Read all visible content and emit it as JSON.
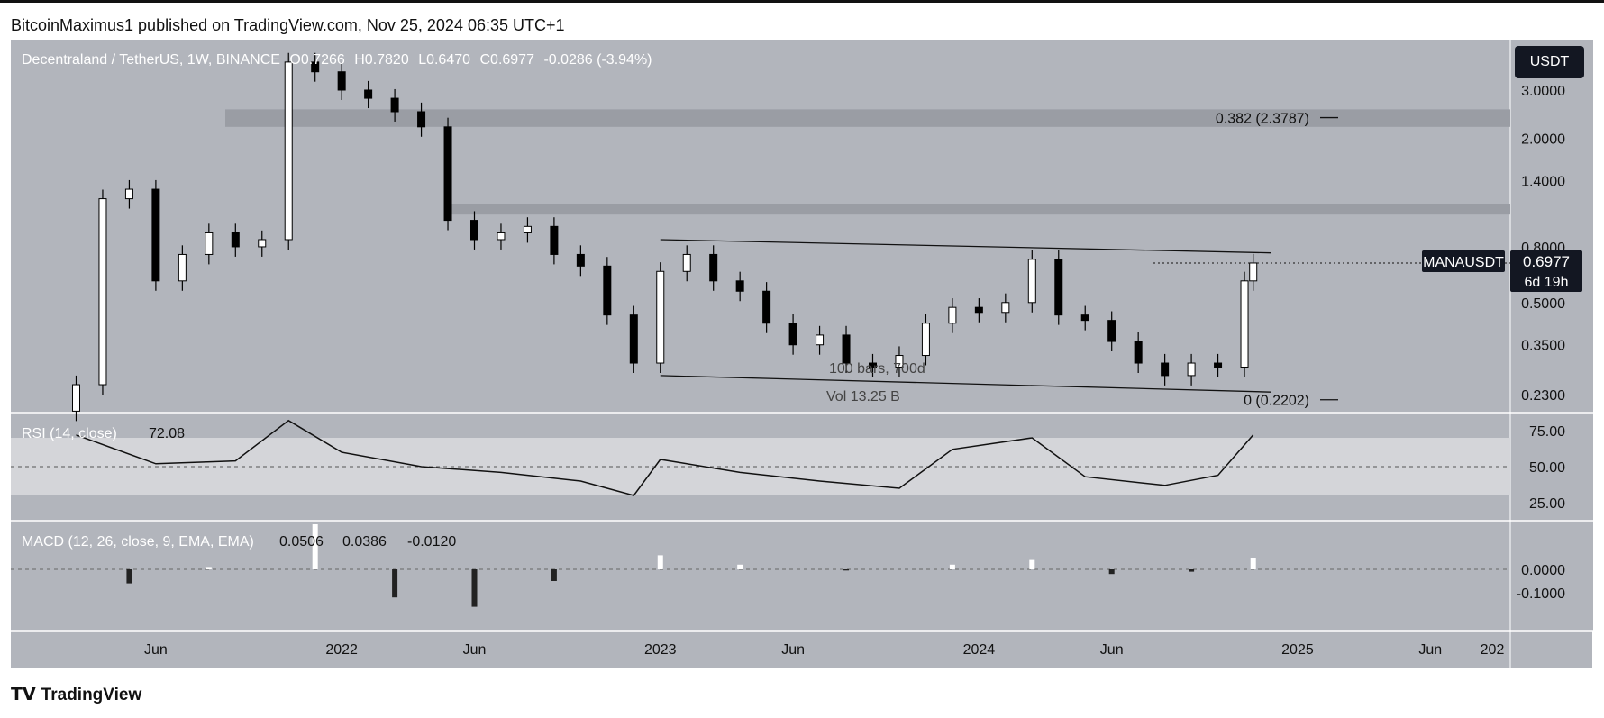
{
  "header": {
    "publisher": "BitcoinMaximus1 published on TradingView.com, Nov 25, 2024 06:35 UTC+1"
  },
  "symbol_bar": {
    "symbol": "Decentraland / TetherUS, 1W, BINANCE",
    "open": "O0.7266",
    "high": "H0.7820",
    "low": "L0.6470",
    "close": "C0.6977",
    "change": "-0.0286 (-3.94%)"
  },
  "currency_badge": "USDT",
  "price_scale": [
    "3.0000",
    "2.0000",
    "1.4000",
    "0.8000",
    "0.5000",
    "0.3500",
    "0.2300"
  ],
  "price_label": {
    "ticker": "MANAUSDT",
    "price": "0.6977",
    "countdown": "6d 19h"
  },
  "fib_labels": [
    "0.382 (2.3787)",
    "0 (0.2202)"
  ],
  "measure_text": [
    "100 bars, 700d",
    "Vol 13.25 B"
  ],
  "rsi": {
    "label": "RSI (14, close)",
    "value": "72.08",
    "scale": [
      "75.00",
      "50.00",
      "25.00"
    ]
  },
  "macd": {
    "label": "MACD (12, 26, close, 9, EMA, EMA)",
    "values": [
      "0.0506",
      "0.0386",
      "-0.0120"
    ],
    "scale": [
      "0.0000",
      "-0.1000"
    ]
  },
  "time_axis": [
    "Jun",
    "2022",
    "Jun",
    "2023",
    "Jun",
    "2024",
    "Jun",
    "2025",
    "Jun",
    "202"
  ],
  "footer": {
    "brand": "TradingView"
  },
  "colors": {
    "panel_bg": "#b2b5bc",
    "candle_up": "#ffffff",
    "candle_down": "#000000",
    "rsi_band": "#d4d5d9",
    "macd_signal": "#ffffff"
  },
  "chart_data": {
    "type": "candlestick",
    "pair": "MANA/USDT",
    "interval": "1W",
    "price_axis": {
      "scale": "log",
      "ticks": [
        3.0,
        2.0,
        1.4,
        0.8,
        0.5,
        0.35,
        0.23
      ]
    },
    "time_range": [
      "2021-03",
      "2025-12"
    ],
    "descending_channel": {
      "upper": [
        [
          "2023-01",
          0.85
        ],
        [
          "2024-12",
          0.76
        ]
      ],
      "lower": [
        [
          "2023-01",
          0.27
        ],
        [
          "2024-12",
          0.235
        ]
      ]
    },
    "fib_levels": [
      {
        "ratio": 0.382,
        "price": 2.3787
      },
      {
        "ratio": 0,
        "price": 0.2202
      }
    ],
    "weekly_close_approx": [
      [
        "2021-03",
        0.25
      ],
      [
        "2021-04",
        1.2
      ],
      [
        "2021-05",
        1.3
      ],
      [
        "2021-06",
        0.6
      ],
      [
        "2021-07",
        0.75
      ],
      [
        "2021-08",
        0.9
      ],
      [
        "2021-09",
        0.8
      ],
      [
        "2021-10",
        0.85
      ],
      [
        "2021-11",
        3.8
      ],
      [
        "2021-12",
        3.5
      ],
      [
        "2022-01",
        3.0
      ],
      [
        "2022-02",
        2.8
      ],
      [
        "2022-03",
        2.5
      ],
      [
        "2022-04",
        2.2
      ],
      [
        "2022-05",
        1.0
      ],
      [
        "2022-06",
        0.85
      ],
      [
        "2022-07",
        0.9
      ],
      [
        "2022-08",
        0.95
      ],
      [
        "2022-09",
        0.75
      ],
      [
        "2022-10",
        0.68
      ],
      [
        "2022-11",
        0.45
      ],
      [
        "2022-12",
        0.3
      ],
      [
        "2023-01",
        0.65
      ],
      [
        "2023-02",
        0.75
      ],
      [
        "2023-03",
        0.6
      ],
      [
        "2023-04",
        0.55
      ],
      [
        "2023-05",
        0.42
      ],
      [
        "2023-06",
        0.35
      ],
      [
        "2023-07",
        0.38
      ],
      [
        "2023-08",
        0.3
      ],
      [
        "2023-09",
        0.29
      ],
      [
        "2023-10",
        0.32
      ],
      [
        "2023-11",
        0.42
      ],
      [
        "2023-12",
        0.48
      ],
      [
        "2024-01",
        0.46
      ],
      [
        "2024-02",
        0.5
      ],
      [
        "2024-03",
        0.72
      ],
      [
        "2024-04",
        0.45
      ],
      [
        "2024-05",
        0.43
      ],
      [
        "2024-06",
        0.36
      ],
      [
        "2024-07",
        0.3
      ],
      [
        "2024-08",
        0.27
      ],
      [
        "2024-09",
        0.3
      ],
      [
        "2024-10",
        0.29
      ],
      [
        "2024-11",
        0.6
      ],
      [
        "2024-11-25",
        0.6977
      ]
    ],
    "rsi_series_approx": [
      [
        "2021-03",
        72
      ],
      [
        "2021-06",
        52
      ],
      [
        "2021-09",
        54
      ],
      [
        "2021-11",
        82
      ],
      [
        "2022-01",
        60
      ],
      [
        "2022-04",
        50
      ],
      [
        "2022-07",
        46
      ],
      [
        "2022-10",
        40
      ],
      [
        "2022-12",
        30
      ],
      [
        "2023-01",
        55
      ],
      [
        "2023-04",
        46
      ],
      [
        "2023-07",
        40
      ],
      [
        "2023-10",
        35
      ],
      [
        "2023-12",
        62
      ],
      [
        "2024-03",
        70
      ],
      [
        "2024-05",
        43
      ],
      [
        "2024-08",
        37
      ],
      [
        "2024-10",
        44
      ],
      [
        "2024-11-25",
        72.08
      ]
    ]
  }
}
